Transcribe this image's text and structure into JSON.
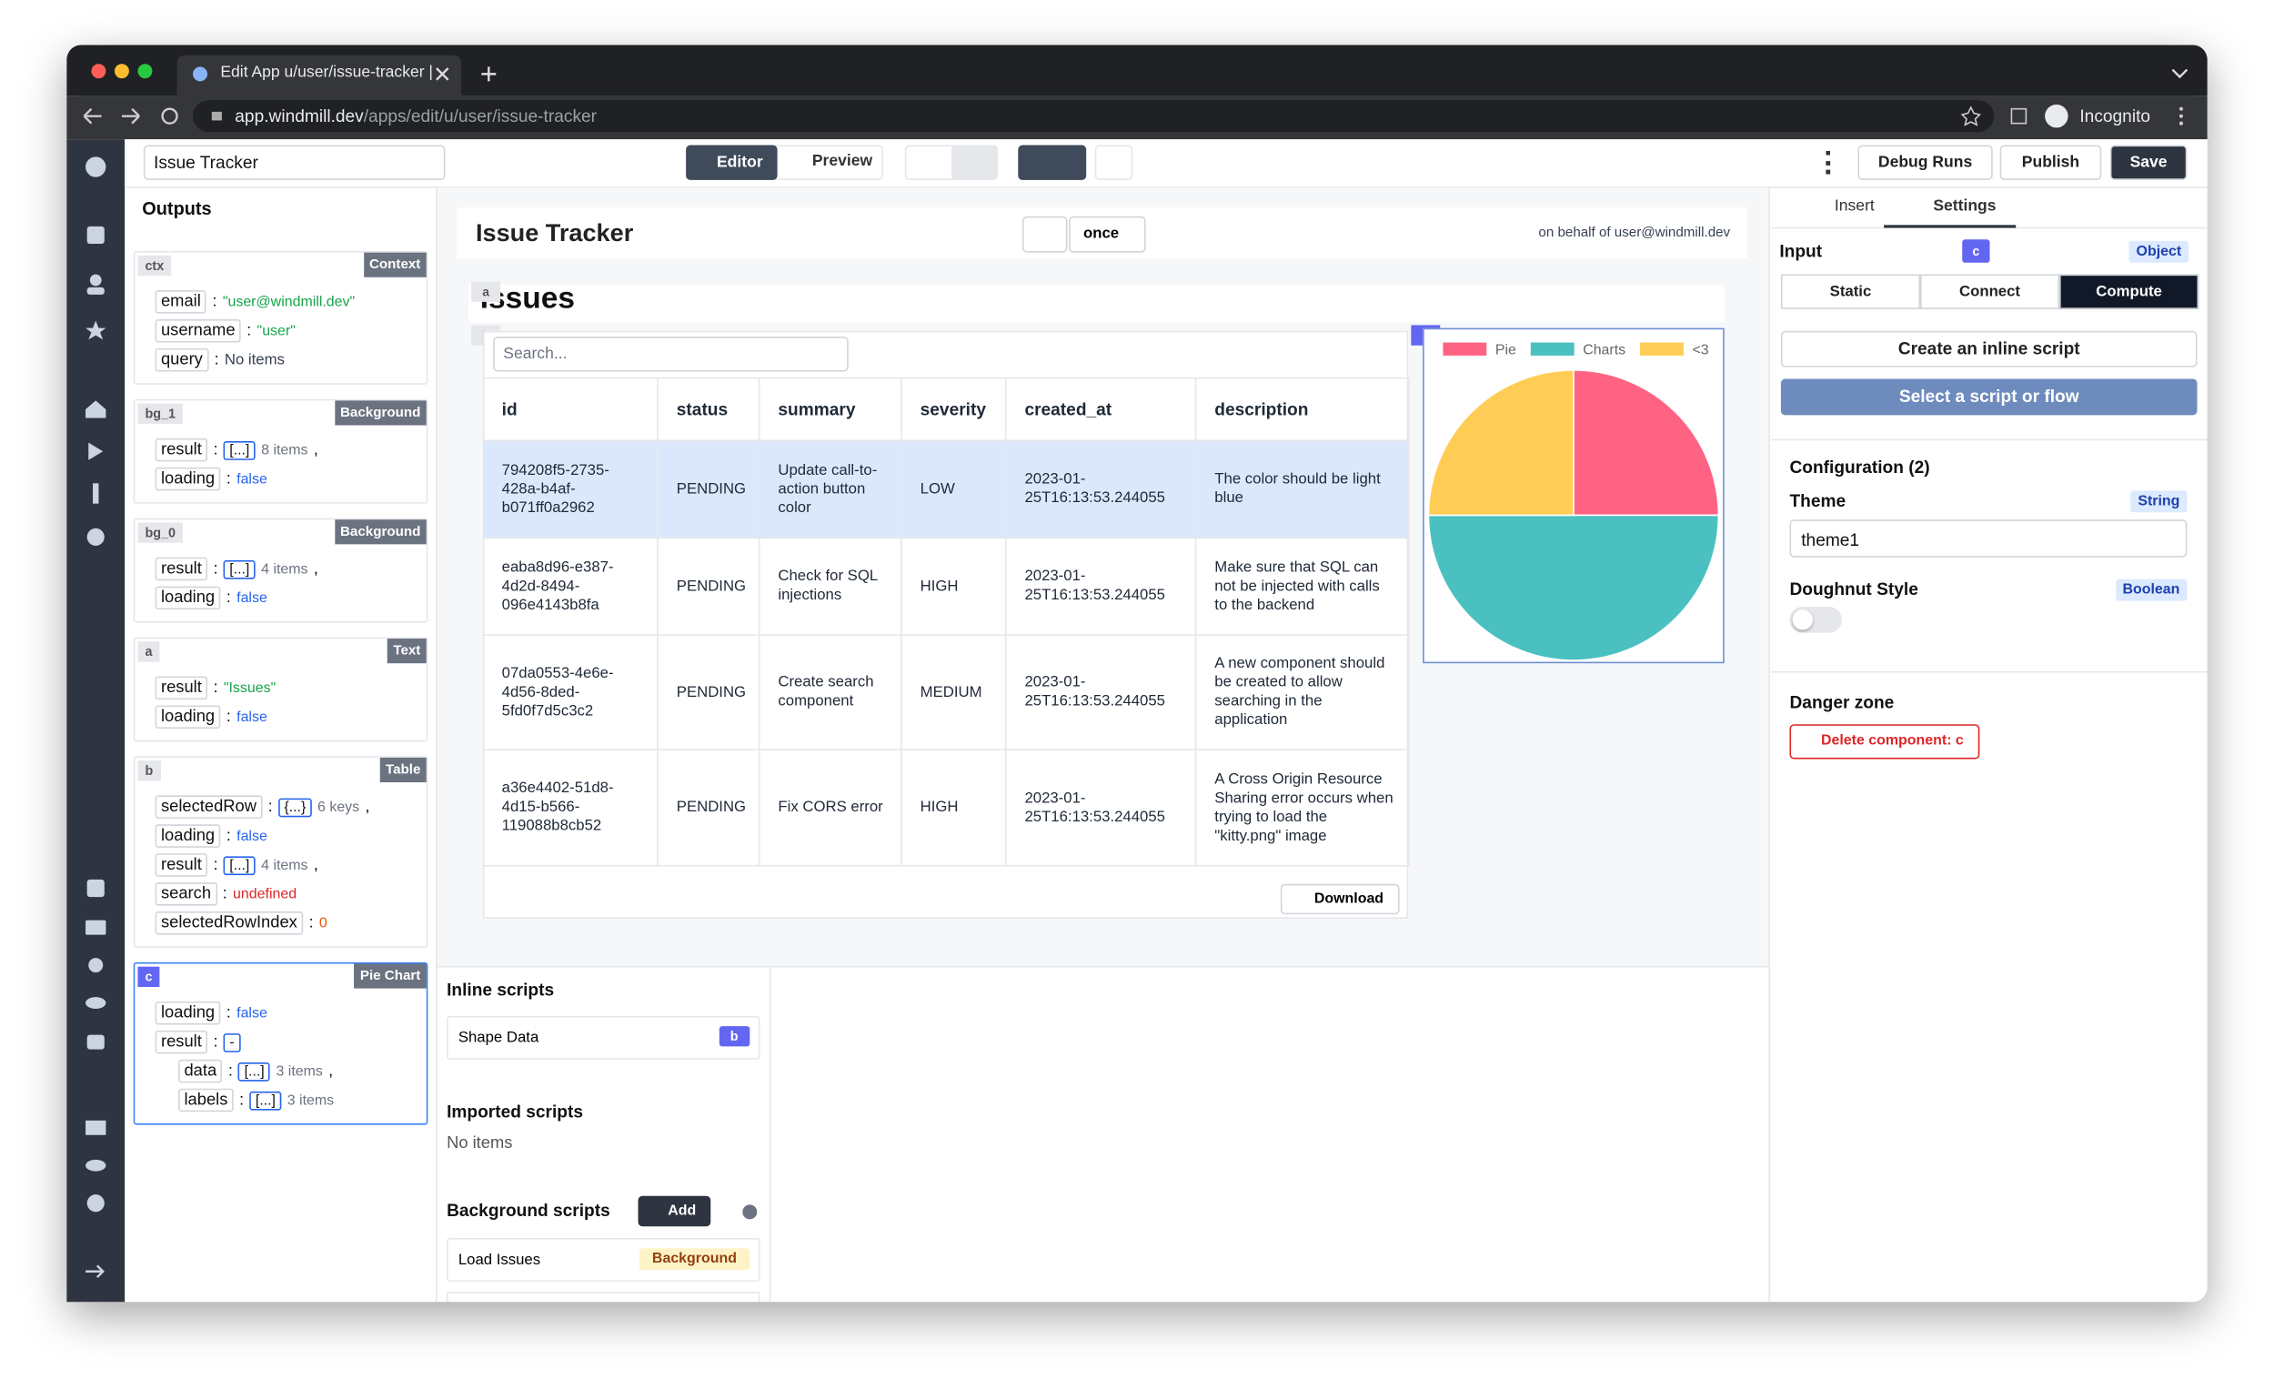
{
  "browser": {
    "tab_title": "Edit App u/user/issue-tracker |",
    "url_host": "app.windmill.dev",
    "url_path": "/apps/edit/u/user/issue-tracker",
    "profile": "Incognito"
  },
  "toolbar": {
    "app_name": "Issue Tracker",
    "editor": "Editor",
    "preview": "Preview",
    "debug_runs": "Debug Runs",
    "publish": "Publish",
    "save": "Save"
  },
  "outputs": {
    "title": "Outputs",
    "separator": ":",
    "groups": [
      {
        "id": "ctx",
        "kind": "Context",
        "fields": [
          {
            "key": "email",
            "value": "\"user@windmill.dev\"",
            "type": "string"
          },
          {
            "key": "username",
            "value": "\"user\"",
            "type": "string"
          },
          {
            "key": "query",
            "value": "No items",
            "type": "plain"
          }
        ]
      },
      {
        "id": "bg_1",
        "kind": "Background",
        "fields": [
          {
            "key": "result",
            "value": "[...]",
            "type": "box",
            "note": "8 items",
            "trail": ","
          },
          {
            "key": "loading",
            "value": "false",
            "type": "bool"
          }
        ]
      },
      {
        "id": "bg_0",
        "kind": "Background",
        "fields": [
          {
            "key": "result",
            "value": "[...]",
            "type": "box",
            "note": "4 items",
            "trail": ","
          },
          {
            "key": "loading",
            "value": "false",
            "type": "bool"
          }
        ]
      },
      {
        "id": "a",
        "kind": "Text",
        "fields": [
          {
            "key": "result",
            "value": "\"Issues\"",
            "type": "string"
          },
          {
            "key": "loading",
            "value": "false",
            "type": "bool"
          }
        ]
      },
      {
        "id": "b",
        "kind": "Table",
        "fields": [
          {
            "key": "selectedRow",
            "value": "{...}",
            "type": "box",
            "note": "6 keys",
            "trail": ","
          },
          {
            "key": "loading",
            "value": "false",
            "type": "bool"
          },
          {
            "key": "result",
            "value": "[...]",
            "type": "box",
            "note": "4 items",
            "trail": ","
          },
          {
            "key": "search",
            "value": "undefined",
            "type": "undef"
          },
          {
            "key": "selectedRowIndex",
            "value": "0",
            "type": "num"
          }
        ]
      },
      {
        "id": "c",
        "kind": "Pie Chart",
        "selected": true,
        "fields": [
          {
            "key": "loading",
            "value": "false",
            "type": "bool"
          },
          {
            "key": "result",
            "value": "-",
            "type": "box",
            "children": [
              {
                "key": "data",
                "value": "[...]",
                "type": "box",
                "note": "3 items",
                "trail": ","
              },
              {
                "key": "labels",
                "value": "[...]",
                "type": "box",
                "note": "3 items"
              }
            ]
          }
        ]
      }
    ]
  },
  "canvas": {
    "title": "Issue Tracker",
    "refresh_mode": "once",
    "behalf": "on behalf of user@windmill.dev",
    "text_value": "Issues",
    "component_ids": [
      "a",
      "b",
      "c"
    ],
    "search_placeholder": "Search...",
    "download": "Download",
    "table": {
      "columns": [
        "id",
        "status",
        "summary",
        "severity",
        "created_at",
        "description"
      ],
      "selected_row": 0,
      "rows": [
        [
          "794208f5-2735-428a-b4af-b071ff0a2962",
          "PENDING",
          "Update call-to-action button color",
          "LOW",
          "2023-01-25T16:13:53.244055",
          "The color should be light blue"
        ],
        [
          "eaba8d96-e387-4d2d-8494-096e4143b8fa",
          "PENDING",
          "Check for SQL injections",
          "HIGH",
          "2023-01-25T16:13:53.244055",
          "Make sure that SQL can not be injected with calls to the backend"
        ],
        [
          "07da0553-4e6e-4d56-8ded-5fd0f7d5c3c2",
          "PENDING",
          "Create search component",
          "MEDIUM",
          "2023-01-25T16:13:53.244055",
          "A new component should be created to allow searching in the application"
        ],
        [
          "a36e4402-51d8-4d15-b566-119088b8cb52",
          "PENDING",
          "Fix CORS error",
          "HIGH",
          "2023-01-25T16:13:53.244055",
          "A Cross Origin Resource Sharing error occurs when trying to load the \"kitty.png\" image"
        ]
      ]
    }
  },
  "chart_data": {
    "type": "pie",
    "labels": [
      "Pie",
      "Charts",
      "<3"
    ],
    "values": [
      25,
      50,
      25
    ],
    "colors": [
      "#ff6384",
      "#4bc0c0",
      "#ffcd56"
    ]
  },
  "scripts": {
    "inline_title": "Inline scripts",
    "inline": [
      {
        "name": "Shape Data",
        "component": "b"
      }
    ],
    "imported_title": "Imported scripts",
    "imported_empty": "No items",
    "background_title": "Background scripts",
    "add": "Add",
    "background": [
      {
        "name": "Load Issues",
        "tag": "Background"
      }
    ]
  },
  "settings": {
    "tabs": [
      "Insert",
      "Settings"
    ],
    "active_tab": 1,
    "input_label": "Input",
    "component": "c",
    "input_type": "Object",
    "modes": [
      "Static",
      "Connect",
      "Compute"
    ],
    "active_mode": 2,
    "create_script": "Create an inline script",
    "select_script": "Select a script or flow",
    "config_title": "Configuration (2)",
    "fields": [
      {
        "label": "Theme",
        "type": "String",
        "value": "theme1"
      },
      {
        "label": "Doughnut Style",
        "type": "Boolean",
        "value": false
      }
    ],
    "danger_title": "Danger zone",
    "delete": "Delete component: c"
  }
}
